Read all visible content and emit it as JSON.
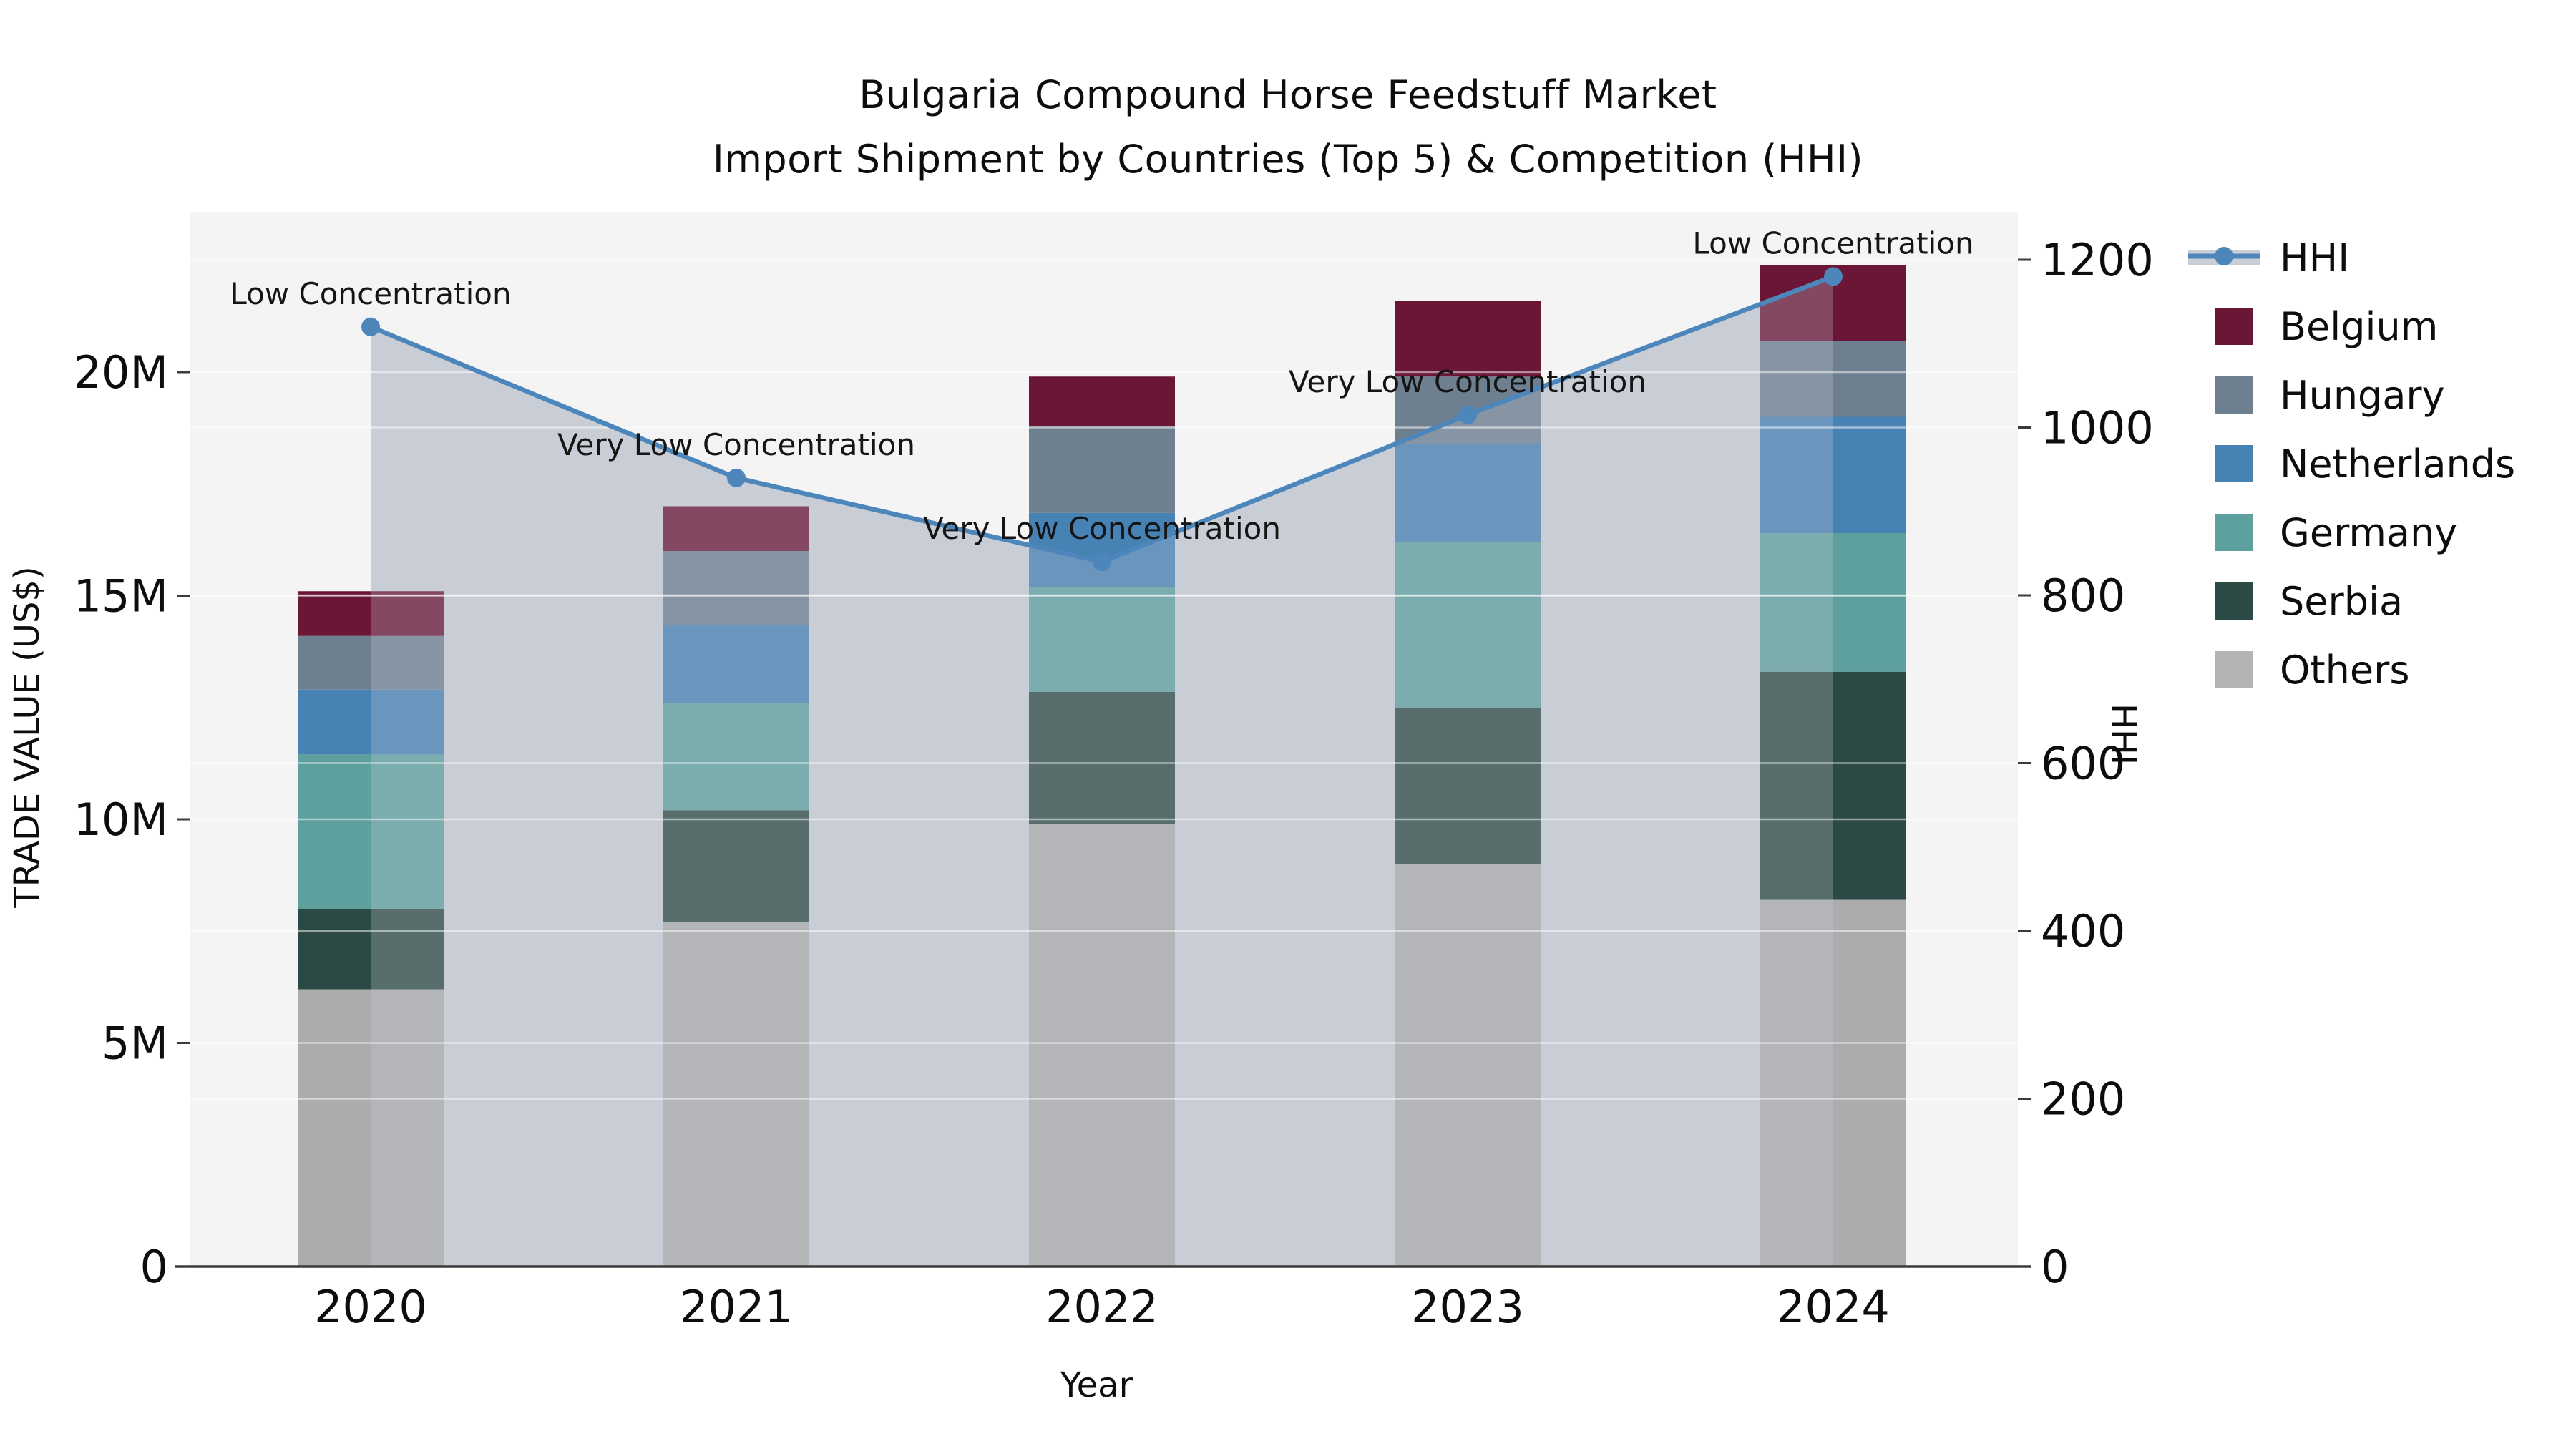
{
  "title": {
    "line1": "Bulgaria Compound Horse Feedstuff Market",
    "line2": "Import Shipment by Countries (Top 5) & Competition (HHI)"
  },
  "chart_data": {
    "type": "combo-stacked-bar-line",
    "categories": [
      "2020",
      "2021",
      "2022",
      "2023",
      "2024"
    ],
    "bar_unit": "Million US$",
    "series": [
      {
        "name": "Others",
        "color": "#acacac",
        "values": [
          6.2,
          7.7,
          9.9,
          9.0,
          8.2
        ]
      },
      {
        "name": "Serbia",
        "color": "#2b4a45",
        "values": [
          1.8,
          2.5,
          2.95,
          3.5,
          5.1
        ]
      },
      {
        "name": "Germany",
        "color": "#5ea09e",
        "values": [
          3.45,
          2.4,
          2.35,
          3.7,
          3.1
        ]
      },
      {
        "name": "Netherlands",
        "color": "#4682b4",
        "values": [
          1.45,
          1.75,
          1.65,
          2.2,
          2.6
        ]
      },
      {
        "name": "Hungary",
        "color": "#6e7f90",
        "values": [
          1.2,
          1.65,
          1.95,
          1.5,
          1.7
        ]
      },
      {
        "name": "Belgium",
        "color": "#6b1537",
        "values": [
          1.0,
          1.0,
          1.1,
          1.7,
          1.7
        ]
      }
    ],
    "stack_totals": [
      15.1,
      17.0,
      19.9,
      21.6,
      22.4
    ],
    "line_series": {
      "name": "HHI",
      "color": "#4c86bb",
      "area_color": "#c9cdd6",
      "values": [
        1120,
        940,
        840,
        1015,
        1180
      ]
    },
    "annotations": [
      "Low Concentration",
      "Very Low Concentration",
      "Very Low Concentration",
      "Very Low Concentration",
      "Low Concentration"
    ],
    "left_axis": {
      "label": "TRADE VALUE (US$)",
      "ticks": [
        {
          "value": 0,
          "label": "0"
        },
        {
          "value": 5,
          "label": "5M"
        },
        {
          "value": 10,
          "label": "10M"
        },
        {
          "value": 15,
          "label": "15M"
        },
        {
          "value": 20,
          "label": "20M"
        }
      ]
    },
    "right_axis": {
      "label": "HHI",
      "ticks": [
        {
          "value": 0,
          "label": "0"
        },
        {
          "value": 200,
          "label": "200"
        },
        {
          "value": 400,
          "label": "400"
        },
        {
          "value": 600,
          "label": "600"
        },
        {
          "value": 800,
          "label": "800"
        },
        {
          "value": 1000,
          "label": "1000"
        },
        {
          "value": 1200,
          "label": "1200"
        }
      ]
    },
    "xlabel": "Year",
    "grid": true,
    "legend_position": "right"
  },
  "legend": {
    "items": [
      {
        "label": "HHI",
        "color": "#4c86bb",
        "type": "line"
      },
      {
        "label": "Belgium",
        "color": "#6b1537",
        "type": "patch"
      },
      {
        "label": "Hungary",
        "color": "#6e7f90",
        "type": "patch"
      },
      {
        "label": "Netherlands",
        "color": "#4682b4",
        "type": "patch"
      },
      {
        "label": "Germany",
        "color": "#5ea09e",
        "type": "patch"
      },
      {
        "label": "Serbia",
        "color": "#2b4a45",
        "type": "patch"
      },
      {
        "label": "Others",
        "color": "#b3b3b3",
        "type": "patch"
      }
    ]
  },
  "colors": {
    "plot_bg": "#f4f4f4",
    "grid": "rgba(255,255,255,0.5)",
    "axis_line": "#3b3b3b",
    "text": "#0d0d0d",
    "area_fill": "#c9cdd6",
    "area_overlay": "rgba(201,205,214,0.28)"
  }
}
